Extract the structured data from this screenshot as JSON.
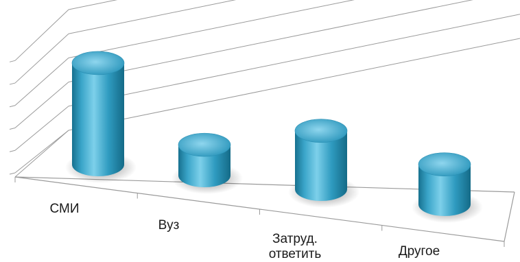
{
  "chart_data": {
    "type": "bar",
    "style": "3d-cylinder",
    "categories": [
      "СМИ",
      "Вуз",
      "Затруд. ответить",
      "Другое"
    ],
    "category_label_lines": [
      [
        "СМИ"
      ],
      [
        "Вуз"
      ],
      [
        "Затруд.",
        "ответить"
      ],
      [
        "Другое"
      ]
    ],
    "values": [
      33,
      10,
      19,
      13
    ],
    "ylim": [
      0,
      40
    ],
    "grid": true,
    "legend": "none",
    "bar_color": "#3aa5c9",
    "title": "",
    "xlabel": "",
    "ylabel": ""
  }
}
